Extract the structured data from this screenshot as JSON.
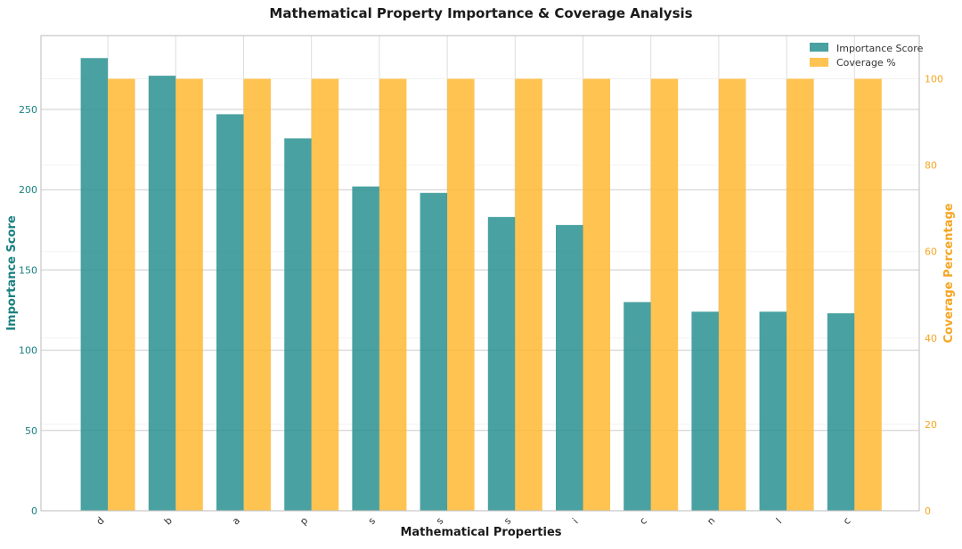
{
  "chart_data": {
    "type": "bar",
    "title": "Mathematical Property Importance & Coverage Analysis",
    "xlabel": "Mathematical Properties",
    "ylabel": "Importance Score",
    "y2label": "Coverage Percentage",
    "categories": [
      "d",
      "b",
      "a",
      "p",
      "s",
      "s",
      "s",
      "i",
      "c",
      "n",
      "l",
      "c"
    ],
    "series": [
      {
        "name": "Importance Score",
        "axis": "left",
        "color": "#2a9090",
        "values": [
          282,
          271,
          247,
          232,
          202,
          198,
          183,
          178,
          130,
          124,
          124,
          123
        ]
      },
      {
        "name": "Coverage %",
        "axis": "right",
        "color": "#ffb833",
        "values": [
          100,
          100,
          100,
          100,
          100,
          100,
          100,
          100,
          100,
          100,
          100,
          100
        ]
      }
    ],
    "ylim": [
      0,
      296
    ],
    "y2lim": [
      0,
      110
    ],
    "yticks": [
      0,
      50,
      100,
      150,
      200,
      250
    ],
    "y2ticks": [
      0,
      20,
      40,
      60,
      80,
      100
    ],
    "grid": true,
    "legend": "top-right",
    "axis_colors": {
      "left": "#1a8080",
      "right": "#f5a623"
    }
  }
}
